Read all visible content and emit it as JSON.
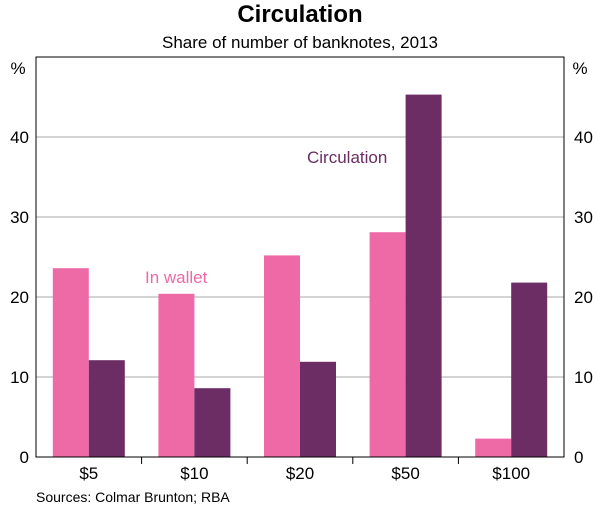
{
  "chart_data": {
    "type": "bar",
    "title": "Circulation",
    "subtitle": "Share of number of banknotes, 2013",
    "categories": [
      "$5",
      "$10",
      "$20",
      "$50",
      "$100"
    ],
    "series": [
      {
        "name": "In wallet",
        "color": "#ee6aa7",
        "values": [
          23.6,
          20.4,
          25.2,
          28.1,
          2.3
        ]
      },
      {
        "name": "Circulation",
        "color": "#6b2d63",
        "values": [
          12.1,
          8.6,
          11.9,
          45.3,
          21.8
        ]
      }
    ],
    "ylim": [
      0,
      50
    ],
    "yticks": [
      "0",
      "10",
      "20",
      "30",
      "40"
    ],
    "yunit_left": "%",
    "yunit_right": "%",
    "source": "Sources: Colmar Brunton; RBA"
  }
}
